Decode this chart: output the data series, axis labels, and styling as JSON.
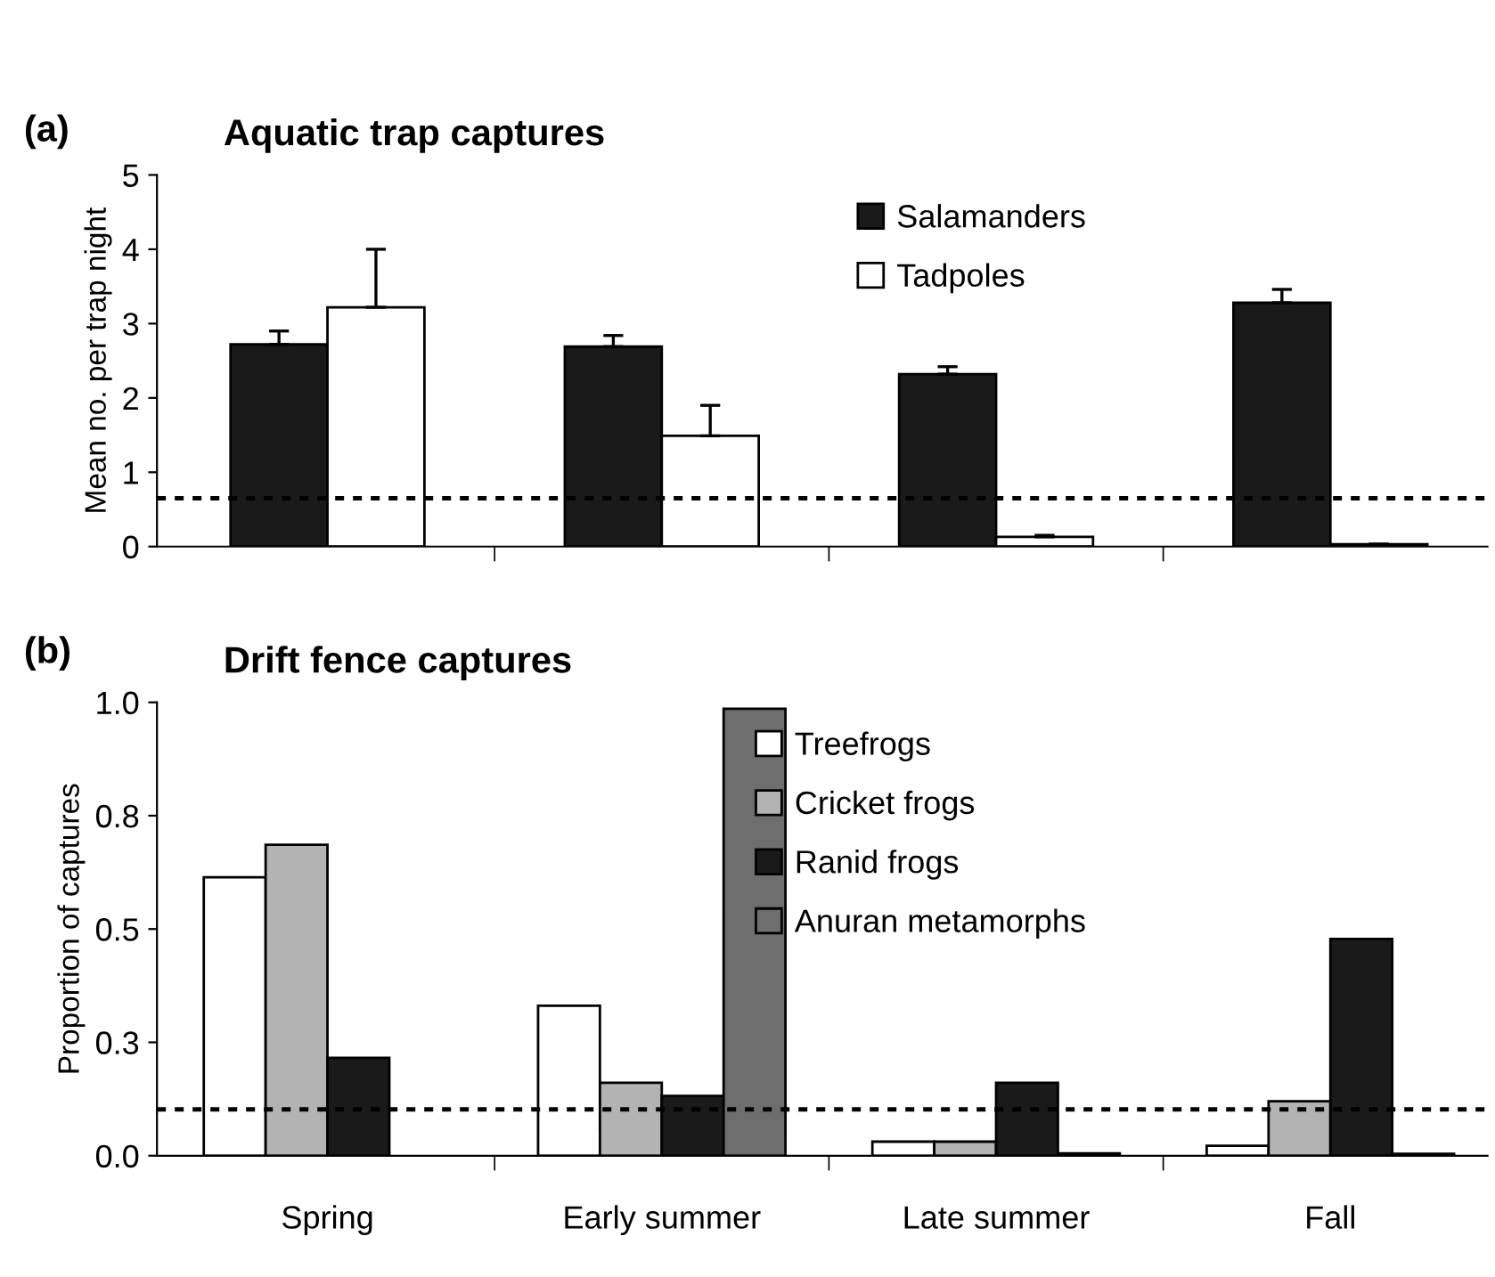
{
  "chart_data": [
    {
      "type": "bar",
      "title": "Aquatic trap captures",
      "ylabel": "Mean no. per trap night",
      "annotations": [
        "(a)"
      ],
      "categories": [
        null,
        null,
        null,
        null
      ],
      "tick_labels": "y",
      "series": [
        {
          "name": "Salamanders",
          "color": "#1a1a1a",
          "values": [
            2.72,
            2.69,
            2.32,
            3.28
          ],
          "errors": [
            0.18,
            0.15,
            0.1,
            0.18
          ]
        },
        {
          "name": "Tadpoles",
          "color": "#ffffff",
          "values": [
            3.22,
            1.49,
            0.13,
            0.03
          ],
          "errors": [
            0.78,
            0.41,
            0.02,
            null
          ]
        }
      ],
      "ylim": [
        0,
        5
      ],
      "yticks": [
        0,
        1,
        2,
        3,
        4,
        5
      ],
      "ref_lines": [
        {
          "axis": "y",
          "value": 0.65,
          "line_style": "dotted",
          "color": "#000000"
        }
      ],
      "legend": "top right",
      "grid": false
    },
    {
      "type": "bar",
      "title": "Drift fence captures",
      "ylabel": "Proportion of captures",
      "annotations": [
        "(b)"
      ],
      "categories": [
        "Spring",
        "Early summer",
        "Late summer",
        "Fall"
      ],
      "series": [
        {
          "name": "Treefrogs",
          "color": "#ffffff",
          "values": [
            0.614,
            0.331,
            0.031,
            0.022
          ]
        },
        {
          "name": "Cricket frogs",
          "color": "#b3b3b3",
          "values": [
            0.686,
            0.161,
            0.031,
            0.12
          ]
        },
        {
          "name": "Ranid frogs",
          "color": "#1a1a1a",
          "values": [
            0.216,
            0.132,
            0.161,
            0.478
          ]
        },
        {
          "name": "Anuran metamorphs",
          "color": "#6e6e6e",
          "values": [
            null,
            0.986,
            0.005,
            0.004
          ]
        }
      ],
      "ylim": [
        0,
        1
      ],
      "yticks": [
        {
          "value": 0,
          "label": "0.0"
        },
        {
          "value": 0.25,
          "label": "0.3"
        },
        {
          "value": 0.5,
          "label": "0.5"
        },
        {
          "value": 0.75,
          "label": "0.8"
        },
        {
          "value": 1,
          "label": "1.0"
        }
      ],
      "ref_lines": [
        {
          "axis": "y",
          "value": 0.102,
          "line_style": "dotted",
          "color": "#000000"
        }
      ],
      "legend": "top right",
      "grid": false
    }
  ]
}
